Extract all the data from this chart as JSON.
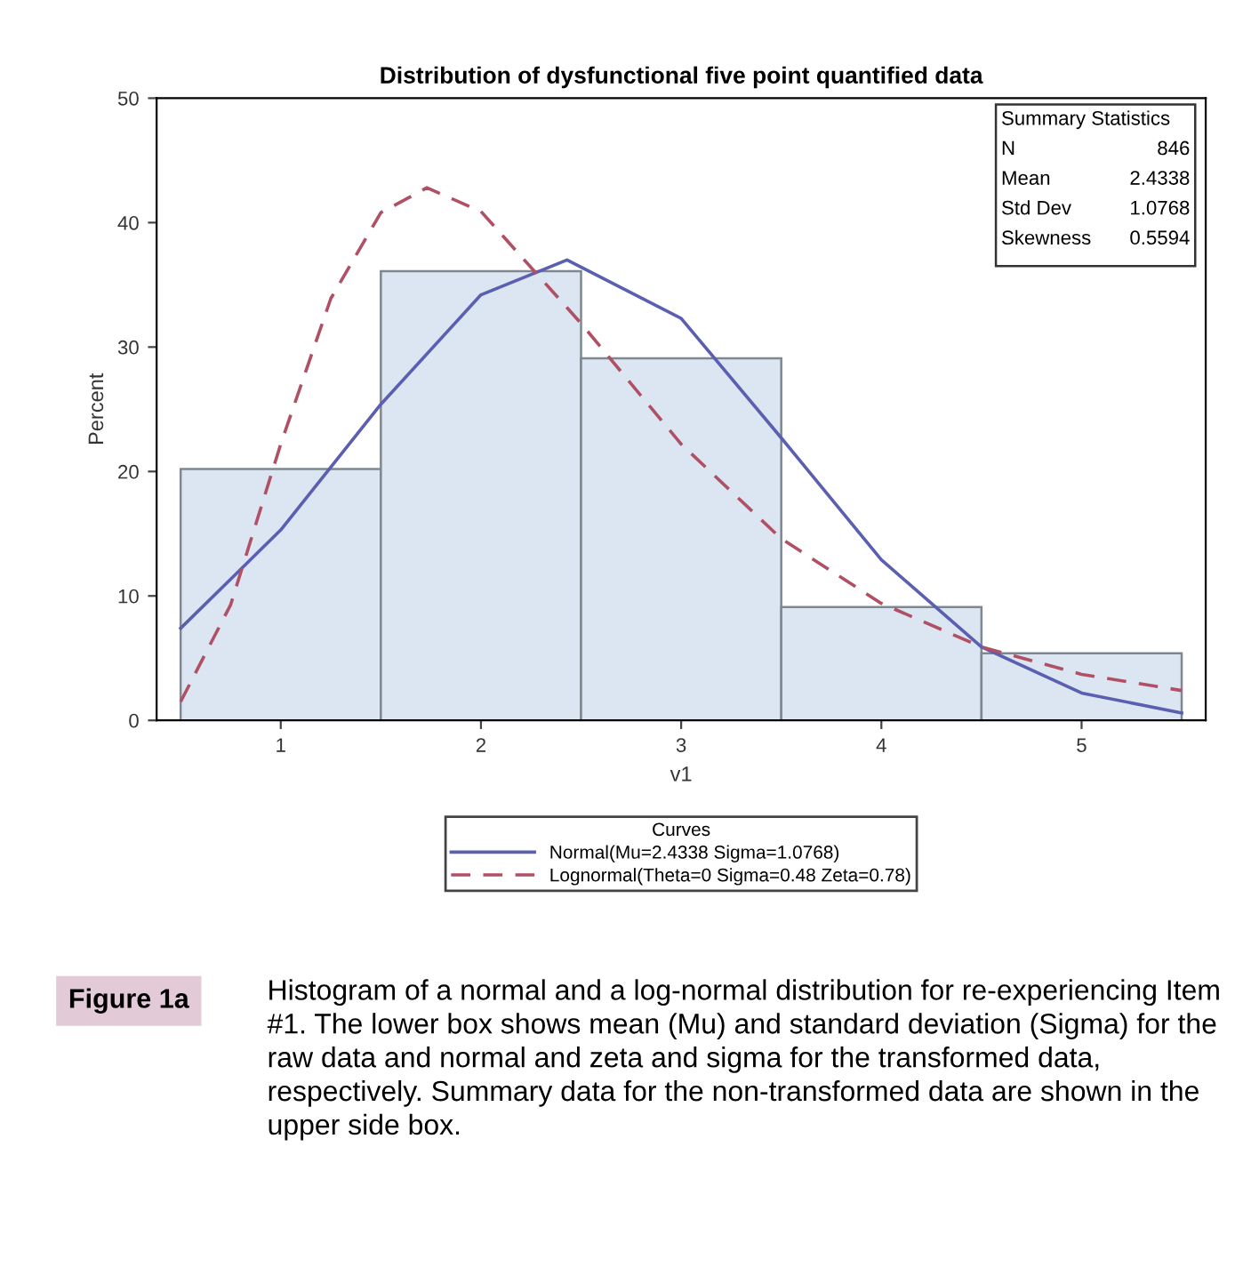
{
  "chart_data": {
    "type": "histogram",
    "title": "Distribution of dysfunctional five point quantified data",
    "xlabel": "v1",
    "ylabel": "Percent",
    "bins": [
      0.5,
      1.5,
      2.5,
      3.5,
      4.5,
      5.5
    ],
    "values": [
      20.2,
      36.1,
      29.1,
      9.1,
      5.4
    ],
    "color": "#dce6f2",
    "series": [
      {
        "name": "Normal(Mu=2.4338 Sigma=1.0768)",
        "type": "line",
        "color": "#5a5fb0",
        "line_style": "solid",
        "x": [
          0.5,
          1,
          1.5,
          2,
          2.43,
          3,
          3.5,
          4,
          4.5,
          5,
          5.5
        ],
        "values": [
          7.4,
          15.3,
          25.4,
          34.2,
          37.0,
          32.3,
          22.7,
          12.9,
          5.9,
          2.2,
          0.6
        ]
      },
      {
        "name": "Lognormal(Theta=0 Sigma=0.48 Zeta=0.78)",
        "type": "line",
        "color": "#b05064",
        "line_style": "dashed",
        "x": [
          0.5,
          0.75,
          1,
          1.25,
          1.5,
          1.73,
          2,
          2.5,
          3,
          3.5,
          4,
          4.5,
          5,
          5.5
        ],
        "values": [
          1.5,
          9.3,
          22.2,
          33.9,
          40.8,
          42.8,
          40.9,
          31.9,
          22.2,
          14.6,
          9.4,
          5.9,
          3.7,
          2.4
        ]
      }
    ],
    "legend_title": "Curves",
    "legend": "bottom",
    "xlim": [
      0.38,
      5.62
    ],
    "xticks": [
      1,
      2,
      3,
      4,
      5
    ],
    "ylim": [
      0,
      50
    ],
    "yticks": [
      0,
      10,
      20,
      30,
      40,
      50
    ],
    "grid": false,
    "annotations": [
      "Summary Statistics",
      "N",
      "846",
      "Mean",
      "2.4338",
      "Std Dev",
      "1.0768",
      "Skewness",
      "0.5594",
      "Figure 1a",
      "Histogram of a normal and a log-normal distribution for re-experiencing Item #1. The lower box shows mean (Mu) and standard deviation (Sigma) for the raw data and normal and zeta and sigma for the transformed data, respectively. Summary data for the non-transformed data are shown in the upper side box."
    ]
  }
}
